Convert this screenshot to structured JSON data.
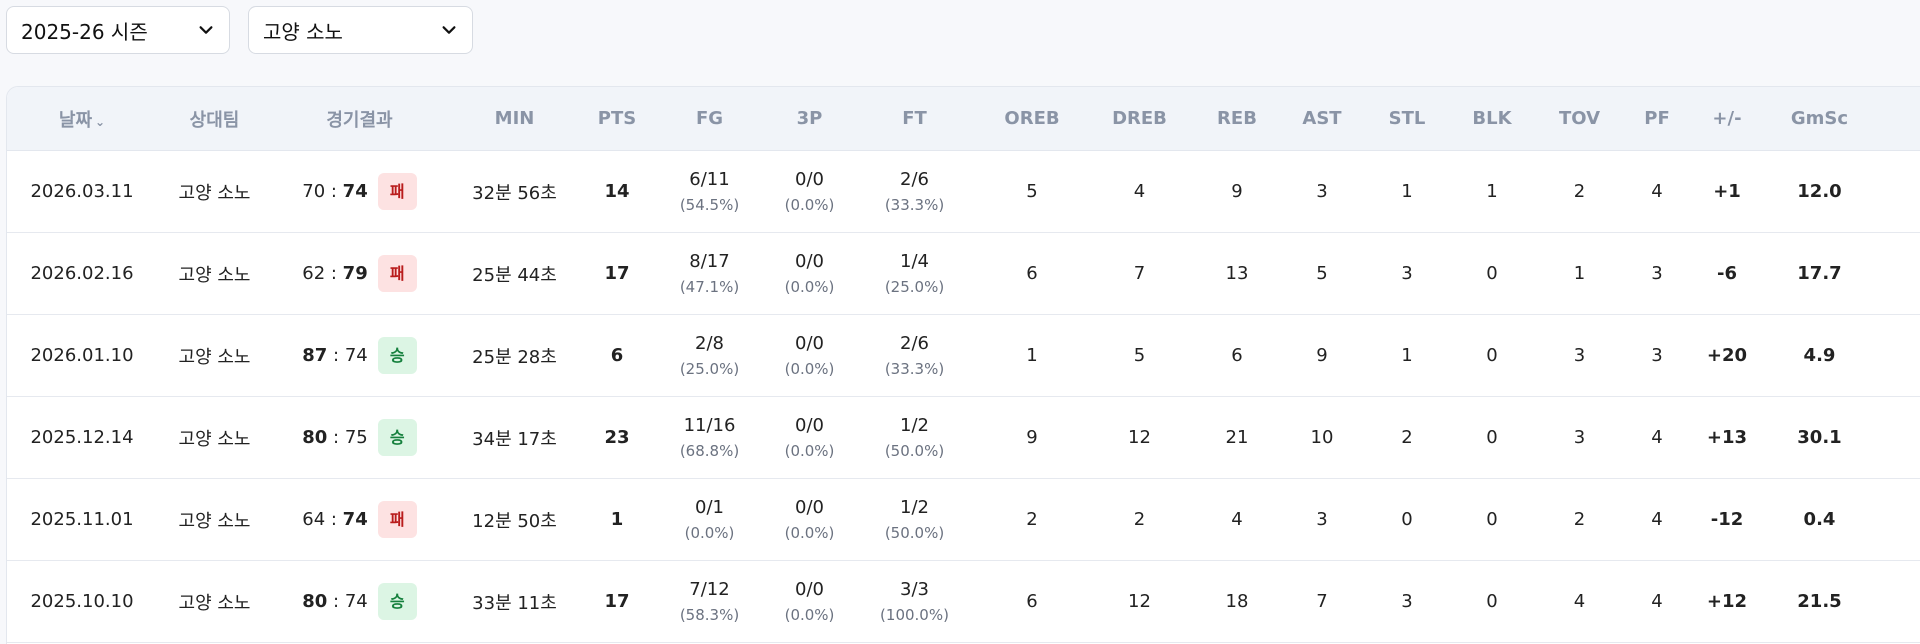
{
  "filters": {
    "season": "2025-26 시즌",
    "team": "고양 소노"
  },
  "columns": [
    "날짜",
    "상대팀",
    "경기결과",
    "MIN",
    "PTS",
    "FG",
    "3P",
    "FT",
    "OREB",
    "DREB",
    "REB",
    "AST",
    "STL",
    "BLK",
    "TOV",
    "PF",
    "+/-",
    "GmSc"
  ],
  "games": [
    {
      "date": "2026.03.11",
      "opp": "고양 소노",
      "score_left": "70",
      "score_right": "74",
      "bold": "right",
      "result": "패",
      "min": "32분 56초",
      "pts": "14",
      "fg": "6/11",
      "fg_pct": "(54.5%)",
      "tp": "0/0",
      "tp_pct": "(0.0%)",
      "ft": "2/6",
      "ft_pct": "(33.3%)",
      "oreb": "5",
      "dreb": "4",
      "reb": "9",
      "ast": "3",
      "stl": "1",
      "blk": "1",
      "tov": "2",
      "pf": "4",
      "pm": "+1",
      "gmsc": "12.0"
    },
    {
      "date": "2026.02.16",
      "opp": "고양 소노",
      "score_left": "62",
      "score_right": "79",
      "bold": "right",
      "result": "패",
      "min": "25분 44초",
      "pts": "17",
      "fg": "8/17",
      "fg_pct": "(47.1%)",
      "tp": "0/0",
      "tp_pct": "(0.0%)",
      "ft": "1/4",
      "ft_pct": "(25.0%)",
      "oreb": "6",
      "dreb": "7",
      "reb": "13",
      "ast": "5",
      "stl": "3",
      "blk": "0",
      "tov": "1",
      "pf": "3",
      "pm": "-6",
      "gmsc": "17.7"
    },
    {
      "date": "2026.01.10",
      "opp": "고양 소노",
      "score_left": "87",
      "score_right": "74",
      "bold": "left",
      "result": "승",
      "min": "25분 28초",
      "pts": "6",
      "fg": "2/8",
      "fg_pct": "(25.0%)",
      "tp": "0/0",
      "tp_pct": "(0.0%)",
      "ft": "2/6",
      "ft_pct": "(33.3%)",
      "oreb": "1",
      "dreb": "5",
      "reb": "6",
      "ast": "9",
      "stl": "1",
      "blk": "0",
      "tov": "3",
      "pf": "3",
      "pm": "+20",
      "gmsc": "4.9"
    },
    {
      "date": "2025.12.14",
      "opp": "고양 소노",
      "score_left": "80",
      "score_right": "75",
      "bold": "left",
      "result": "승",
      "min": "34분 17초",
      "pts": "23",
      "fg": "11/16",
      "fg_pct": "(68.8%)",
      "tp": "0/0",
      "tp_pct": "(0.0%)",
      "ft": "1/2",
      "ft_pct": "(50.0%)",
      "oreb": "9",
      "dreb": "12",
      "reb": "21",
      "ast": "10",
      "stl": "2",
      "blk": "0",
      "tov": "3",
      "pf": "4",
      "pm": "+13",
      "gmsc": "30.1"
    },
    {
      "date": "2025.11.01",
      "opp": "고양 소노",
      "score_left": "64",
      "score_right": "74",
      "bold": "right",
      "result": "패",
      "min": "12분 50초",
      "pts": "1",
      "fg": "0/1",
      "fg_pct": "(0.0%)",
      "tp": "0/0",
      "tp_pct": "(0.0%)",
      "ft": "1/2",
      "ft_pct": "(50.0%)",
      "oreb": "2",
      "dreb": "2",
      "reb": "4",
      "ast": "3",
      "stl": "0",
      "blk": "0",
      "tov": "2",
      "pf": "4",
      "pm": "-12",
      "gmsc": "0.4"
    },
    {
      "date": "2025.10.10",
      "opp": "고양 소노",
      "score_left": "80",
      "score_right": "74",
      "bold": "left",
      "result": "승",
      "min": "33분 11초",
      "pts": "17",
      "fg": "7/12",
      "fg_pct": "(58.3%)",
      "tp": "0/0",
      "tp_pct": "(0.0%)",
      "ft": "3/3",
      "ft_pct": "(100.0%)",
      "oreb": "6",
      "dreb": "12",
      "reb": "18",
      "ast": "7",
      "stl": "3",
      "blk": "0",
      "tov": "4",
      "pf": "4",
      "pm": "+12",
      "gmsc": "21.5"
    }
  ],
  "icons": {
    "sort": "chevron-down-icon",
    "select": "chevron-down-icon"
  },
  "colors": {
    "pts": "#1d4ed8",
    "win_bg": "#dcf5e4",
    "loss_bg": "#fde2e2",
    "plus": "#16a34a",
    "minus": "#dc2626",
    "gmsc": "#f59e0b"
  }
}
